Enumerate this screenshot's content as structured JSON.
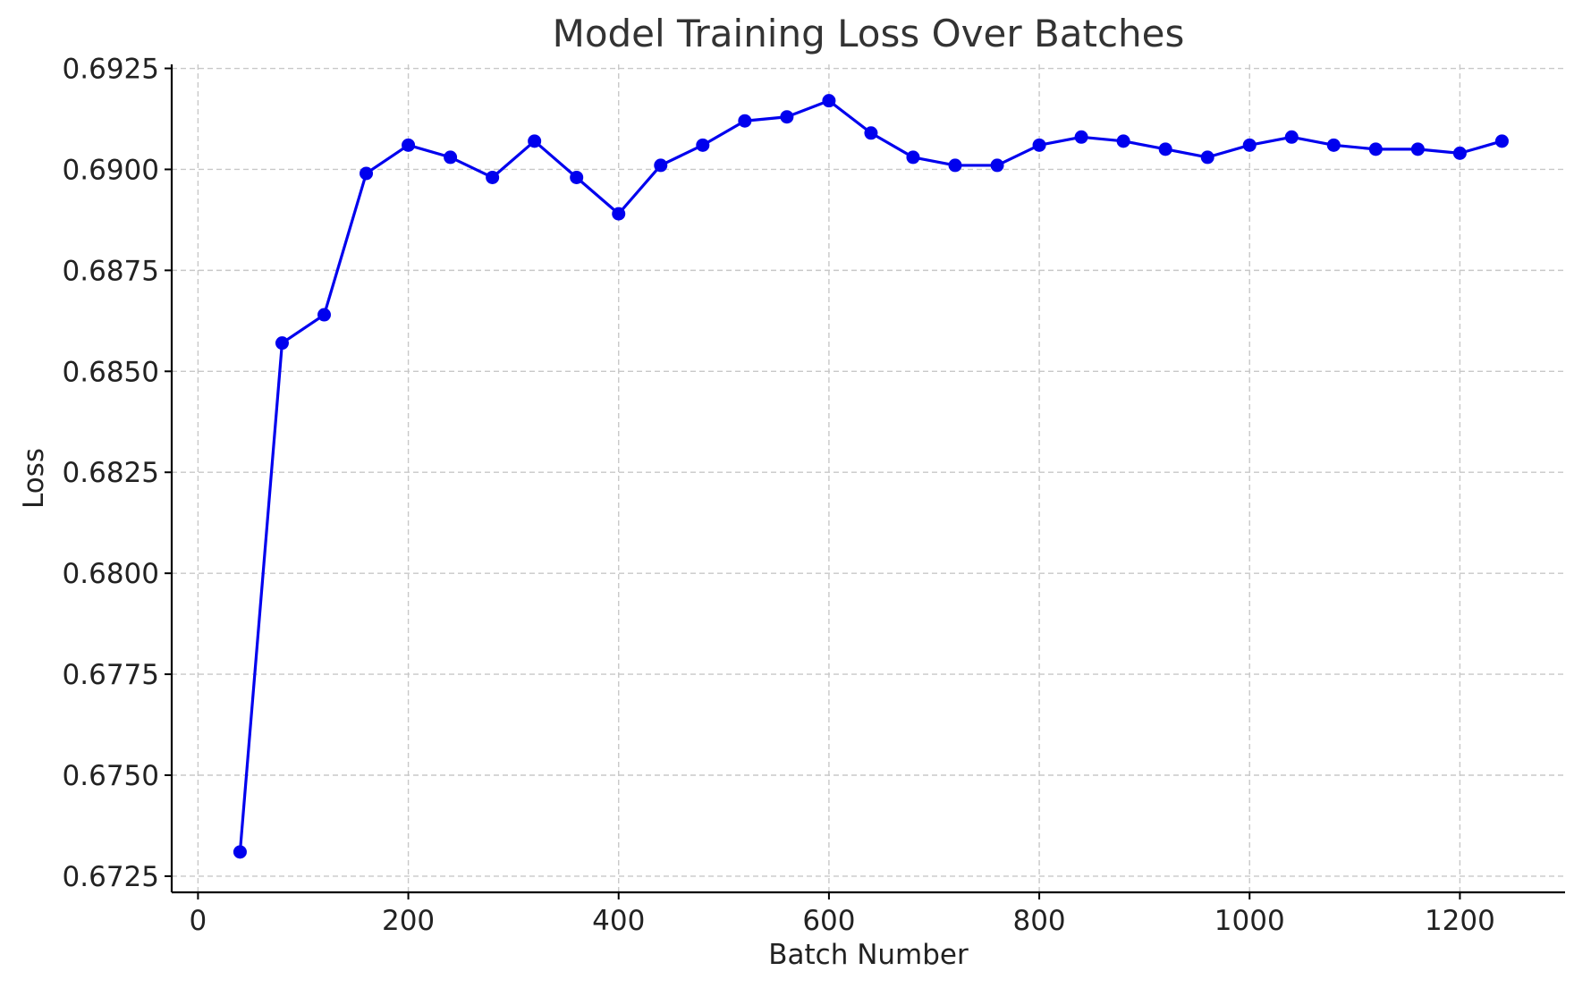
{
  "chart_data": {
    "type": "line",
    "title": "Model Training Loss Over Batches",
    "xlabel": "Batch Number",
    "ylabel": "Loss",
    "xlim": [
      -25,
      1300
    ],
    "ylim": [
      0.6721,
      0.6926
    ],
    "xticks": [
      0,
      200,
      400,
      600,
      800,
      1000,
      1200
    ],
    "xtick_labels": [
      "0",
      "200",
      "400",
      "600",
      "800",
      "1000",
      "1200"
    ],
    "yticks": [
      0.6725,
      0.675,
      0.6775,
      0.68,
      0.6825,
      0.685,
      0.6875,
      0.69,
      0.6925
    ],
    "ytick_labels": [
      "0.6725",
      "0.6750",
      "0.6775",
      "0.6800",
      "0.6825",
      "0.6850",
      "0.6875",
      "0.6900",
      "0.6925"
    ],
    "grid": true,
    "series": [
      {
        "color": "#0000ee",
        "marker": "circle",
        "x": [
          40,
          80,
          120,
          160,
          200,
          240,
          280,
          320,
          360,
          400,
          440,
          480,
          520,
          560,
          600,
          640,
          680,
          720,
          760,
          800,
          840,
          880,
          920,
          960,
          1000,
          1040,
          1080,
          1120,
          1160,
          1200,
          1240
        ],
        "y": [
          0.6731,
          0.6857,
          0.6864,
          0.6899,
          0.6906,
          0.6903,
          0.6898,
          0.6907,
          0.6898,
          0.6889,
          0.6901,
          0.6906,
          0.6912,
          0.6913,
          0.6917,
          0.6909,
          0.6903,
          0.6901,
          0.6901,
          0.6906,
          0.6908,
          0.6907,
          0.6905,
          0.6903,
          0.6906,
          0.6908,
          0.6906,
          0.6905,
          0.6905,
          0.6904,
          0.6907
        ]
      }
    ]
  }
}
